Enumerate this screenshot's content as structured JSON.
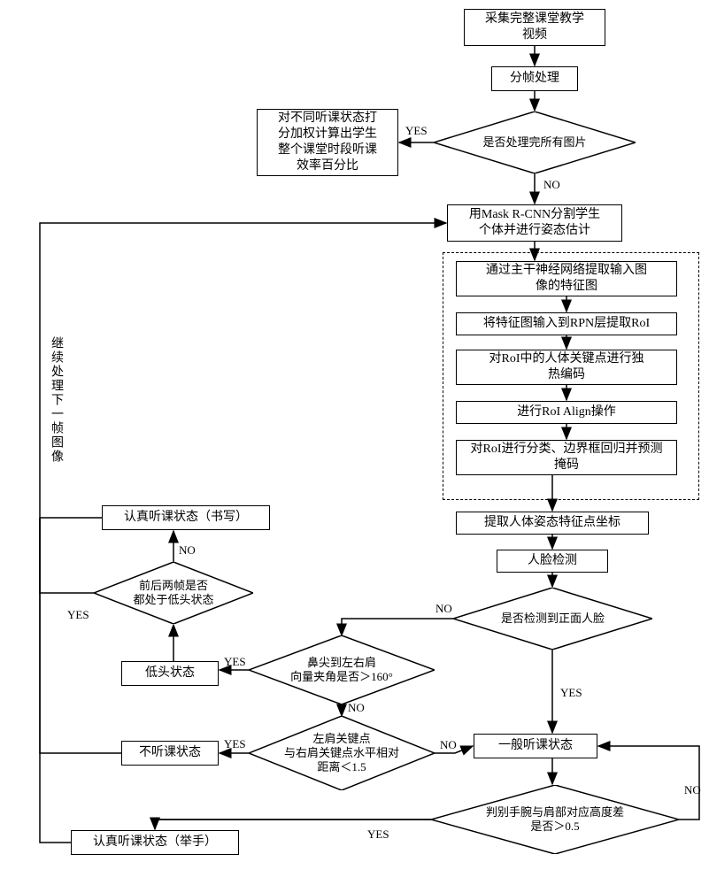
{
  "flowchart": {
    "type": "flowchart",
    "background_color": "#ffffff",
    "stroke_color": "#000000",
    "font_family": "SimSun",
    "node_fontsize": 14,
    "decision_fontsize": 13,
    "edge_label_fontsize": 13,
    "nodes": {
      "n1": {
        "text": "采集完整课堂教学\n视频",
        "shape": "rect"
      },
      "n2": {
        "text": "分帧处理",
        "shape": "rect"
      },
      "n3": {
        "text": "是否处理完所有图片",
        "shape": "diamond"
      },
      "n4": {
        "text": "对不同听课状态打\n分加权计算出学生\n整个课堂时段听课\n效率百分比",
        "shape": "rect"
      },
      "n5": {
        "text": "用Mask R-CNN分割学生\n个体并进行姿态估计",
        "shape": "rect"
      },
      "n6": {
        "text": "通过主干神经网络提取输入图\n像的特征图",
        "shape": "rect"
      },
      "n7": {
        "text": "将特征图输入到RPN层提取RoI",
        "shape": "rect"
      },
      "n8": {
        "text": "对RoI中的人体关键点进行独\n热编码",
        "shape": "rect"
      },
      "n9": {
        "text": "进行RoI Align操作",
        "shape": "rect"
      },
      "n10": {
        "text": "对RoI进行分类、边界框回归并预测\n掩码",
        "shape": "rect"
      },
      "n11": {
        "text": "提取人体姿态特征点坐标",
        "shape": "rect"
      },
      "n12": {
        "text": "人脸检测",
        "shape": "rect"
      },
      "n13": {
        "text": "是否检测到正面人脸",
        "shape": "diamond"
      },
      "n14": {
        "text": "鼻尖到左右肩\n向量夹角是否＞160°",
        "shape": "diamond"
      },
      "n15": {
        "text": "一般听课状态",
        "shape": "rect"
      },
      "n16": {
        "text": "判别手腕与肩部对应高度差\n是否＞0.5",
        "shape": "diamond"
      },
      "n17": {
        "text": "左肩关键点\n与右肩关键点水平相对\n距离＜1.5",
        "shape": "diamond"
      },
      "n18": {
        "text": "低头状态",
        "shape": "rect"
      },
      "n19": {
        "text": "不听课状态",
        "shape": "rect"
      },
      "n20": {
        "text": "认真听课状态（举手）",
        "shape": "rect"
      },
      "n21": {
        "text": "前后两帧是否\n都处于低头状态",
        "shape": "diamond"
      },
      "n22": {
        "text": "认真听课状态（书写）",
        "shape": "rect"
      },
      "vlabel": {
        "text": "继续处理下一帧图像",
        "shape": "vertical-text"
      }
    },
    "edge_labels": {
      "yes": "YES",
      "no": "NO"
    },
    "arrowhead": {
      "width": 8,
      "length": 10,
      "fill": "#000000"
    }
  }
}
